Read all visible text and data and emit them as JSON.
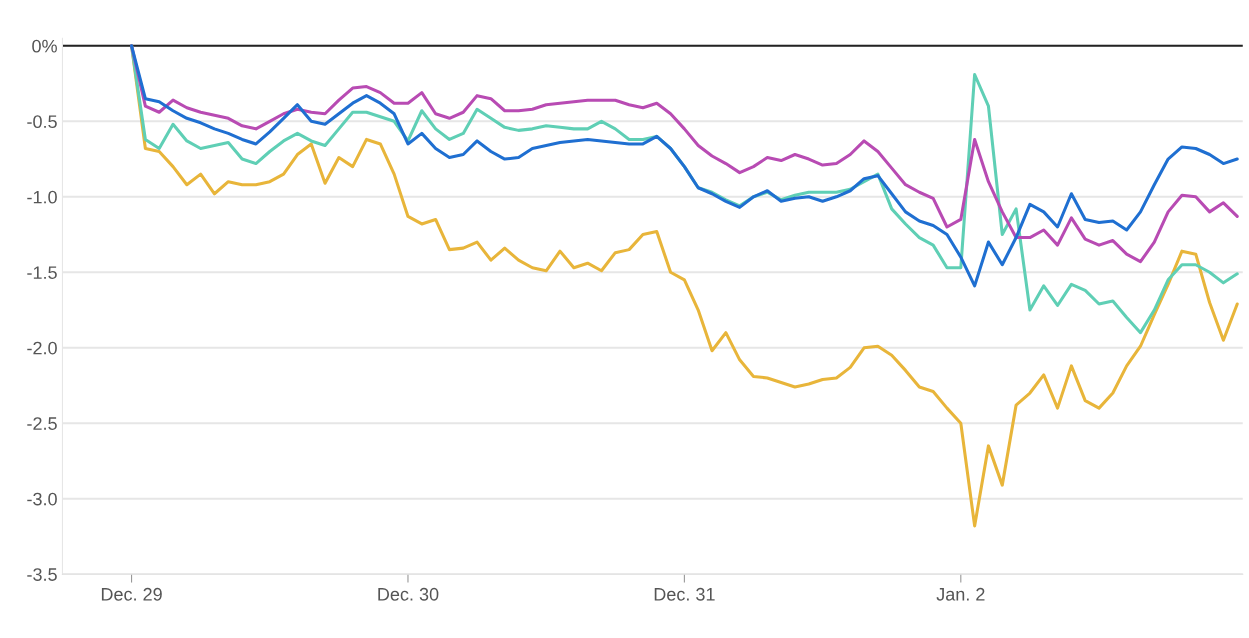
{
  "chart_data": {
    "type": "line",
    "categories": [
      "Dec. 29",
      null,
      null,
      null,
      null,
      null,
      null,
      null,
      null,
      null,
      null,
      null,
      null,
      null,
      null,
      null,
      null,
      null,
      null,
      null,
      "Dec. 30",
      null,
      null,
      null,
      null,
      null,
      null,
      null,
      null,
      null,
      null,
      null,
      null,
      null,
      null,
      null,
      null,
      null,
      null,
      null,
      "Dec. 31",
      null,
      null,
      null,
      null,
      null,
      null,
      null,
      null,
      null,
      null,
      null,
      null,
      null,
      null,
      null,
      null,
      null,
      null,
      null,
      "Jan. 2",
      null,
      null,
      null,
      null,
      null,
      null,
      null,
      null,
      null,
      null,
      null,
      null,
      null,
      null,
      null,
      null,
      null,
      null,
      null,
      null
    ],
    "ylim": [
      -3.5,
      0.05
    ],
    "yticks": [
      {
        "value": 0,
        "label": "0%"
      },
      {
        "value": -0.5,
        "label": "-0.5"
      },
      {
        "value": -1.0,
        "label": "-1.0"
      },
      {
        "value": -1.5,
        "label": "-1.5"
      },
      {
        "value": -2.0,
        "label": "-2.0"
      },
      {
        "value": -2.5,
        "label": "-2.5"
      },
      {
        "value": -3.0,
        "label": "-3.0"
      },
      {
        "value": -3.5,
        "label": "-3.5"
      }
    ],
    "grid": "y",
    "ref_lines": [
      {
        "axis": "y",
        "value": 0,
        "color": "#222222"
      }
    ],
    "series": [
      {
        "color": "#e8b53a",
        "values": [
          0,
          -0.68,
          -0.7,
          -0.8,
          -0.92,
          -0.85,
          -0.98,
          -0.9,
          -0.92,
          -0.92,
          -0.9,
          -0.85,
          -0.72,
          -0.65,
          -0.91,
          -0.74,
          -0.8,
          -0.62,
          -0.65,
          -0.85,
          -1.13,
          -1.18,
          -1.15,
          -1.35,
          -1.34,
          -1.3,
          -1.42,
          -1.34,
          -1.42,
          -1.47,
          -1.49,
          -1.36,
          -1.47,
          -1.44,
          -1.49,
          -1.37,
          -1.35,
          -1.25,
          -1.23,
          -1.5,
          -1.55,
          -1.75,
          -2.02,
          -1.9,
          -2.08,
          -2.19,
          -2.2,
          -2.23,
          -2.26,
          -2.24,
          -2.21,
          -2.2,
          -2.13,
          -2.0,
          -1.99,
          -2.05,
          -2.15,
          -2.26,
          -2.29,
          -2.4,
          -2.5,
          -3.18,
          -2.65,
          -2.91,
          -2.38,
          -2.3,
          -2.18,
          -2.4,
          -2.12,
          -2.35,
          -2.4,
          -2.3,
          -2.12,
          -1.99,
          -1.78,
          -1.58,
          -1.36,
          -1.38,
          -1.7,
          -1.95,
          -1.71
        ]
      },
      {
        "color": "#5fcfb5",
        "values": [
          0,
          -0.62,
          -0.68,
          -0.52,
          -0.63,
          -0.68,
          -0.66,
          -0.64,
          -0.75,
          -0.78,
          -0.7,
          -0.63,
          -0.58,
          -0.63,
          -0.66,
          -0.55,
          -0.44,
          -0.44,
          -0.47,
          -0.5,
          -0.63,
          -0.43,
          -0.55,
          -0.62,
          -0.58,
          -0.42,
          -0.48,
          -0.54,
          -0.56,
          -0.55,
          -0.53,
          -0.54,
          -0.55,
          -0.55,
          -0.5,
          -0.55,
          -0.62,
          -0.62,
          -0.6,
          -0.68,
          -0.8,
          -0.94,
          -0.97,
          -1.02,
          -1.06,
          -1.0,
          -0.97,
          -1.02,
          -0.99,
          -0.97,
          -0.97,
          -0.97,
          -0.95,
          -0.9,
          -0.85,
          -1.08,
          -1.18,
          -1.27,
          -1.32,
          -1.47,
          -1.47,
          -0.19,
          -0.4,
          -1.25,
          -1.08,
          -1.75,
          -1.59,
          -1.72,
          -1.58,
          -1.62,
          -1.71,
          -1.69,
          -1.8,
          -1.9,
          -1.75,
          -1.55,
          -1.45,
          -1.45,
          -1.5,
          -1.57,
          -1.51
        ]
      },
      {
        "color": "#b84bb3",
        "values": [
          0,
          -0.4,
          -0.44,
          -0.36,
          -0.41,
          -0.44,
          -0.46,
          -0.48,
          -0.53,
          -0.55,
          -0.5,
          -0.45,
          -0.42,
          -0.44,
          -0.45,
          -0.36,
          -0.28,
          -0.27,
          -0.31,
          -0.38,
          -0.38,
          -0.31,
          -0.45,
          -0.48,
          -0.44,
          -0.33,
          -0.35,
          -0.43,
          -0.43,
          -0.42,
          -0.39,
          -0.38,
          -0.37,
          -0.36,
          -0.36,
          -0.36,
          -0.39,
          -0.41,
          -0.38,
          -0.45,
          -0.55,
          -0.66,
          -0.73,
          -0.78,
          -0.84,
          -0.8,
          -0.74,
          -0.76,
          -0.72,
          -0.75,
          -0.79,
          -0.78,
          -0.72,
          -0.63,
          -0.7,
          -0.81,
          -0.92,
          -0.97,
          -1.01,
          -1.2,
          -1.15,
          -0.62,
          -0.9,
          -1.1,
          -1.27,
          -1.27,
          -1.22,
          -1.32,
          -1.14,
          -1.28,
          -1.32,
          -1.29,
          -1.38,
          -1.43,
          -1.3,
          -1.1,
          -0.99,
          -1.0,
          -1.1,
          -1.04,
          -1.13
        ]
      },
      {
        "color": "#1f6fd1",
        "values": [
          0,
          -0.35,
          -0.37,
          -0.43,
          -0.48,
          -0.51,
          -0.55,
          -0.58,
          -0.62,
          -0.65,
          -0.57,
          -0.48,
          -0.39,
          -0.5,
          -0.52,
          -0.45,
          -0.38,
          -0.33,
          -0.38,
          -0.45,
          -0.65,
          -0.58,
          -0.68,
          -0.74,
          -0.72,
          -0.63,
          -0.7,
          -0.75,
          -0.74,
          -0.68,
          -0.66,
          -0.64,
          -0.63,
          -0.62,
          -0.63,
          -0.64,
          -0.65,
          -0.65,
          -0.6,
          -0.68,
          -0.8,
          -0.94,
          -0.98,
          -1.03,
          -1.07,
          -1.0,
          -0.96,
          -1.03,
          -1.01,
          -1.0,
          -1.03,
          -1.0,
          -0.96,
          -0.88,
          -0.86,
          -0.98,
          -1.1,
          -1.16,
          -1.19,
          -1.25,
          -1.4,
          -1.59,
          -1.3,
          -1.45,
          -1.27,
          -1.05,
          -1.1,
          -1.2,
          -0.98,
          -1.15,
          -1.17,
          -1.16,
          -1.22,
          -1.1,
          -0.92,
          -0.75,
          -0.67,
          -0.68,
          -0.72,
          -0.78,
          -0.75
        ]
      }
    ]
  }
}
